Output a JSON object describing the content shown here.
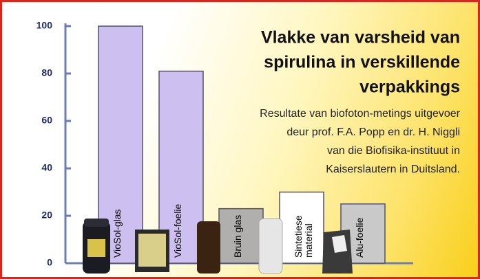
{
  "chart_data": {
    "type": "bar",
    "title": [
      "Vlakke van varsheid van",
      "spirulina in verskillende",
      "verpakkings"
    ],
    "subtitle": [
      "Resultate van biofoton-metings uitgevoer",
      "deur prof. F.A. Popp en dr. H. Niggli",
      "van die Biofisika-instituut in",
      "Kaiserslautern in Duitsland."
    ],
    "categories": [
      "VioSol-glas",
      "VioSol-foelie",
      "Bruin glas",
      "Sintetiese material",
      "Alu-foelie"
    ],
    "values": [
      100,
      81,
      23,
      30,
      25
    ],
    "colors": [
      "#cdbff0",
      "#cdbff0",
      "#b0afad",
      "#ffffff",
      "#c9c9c9"
    ],
    "ylim": [
      0,
      100
    ],
    "yticks": [
      0,
      20,
      40,
      60,
      80,
      100
    ]
  }
}
